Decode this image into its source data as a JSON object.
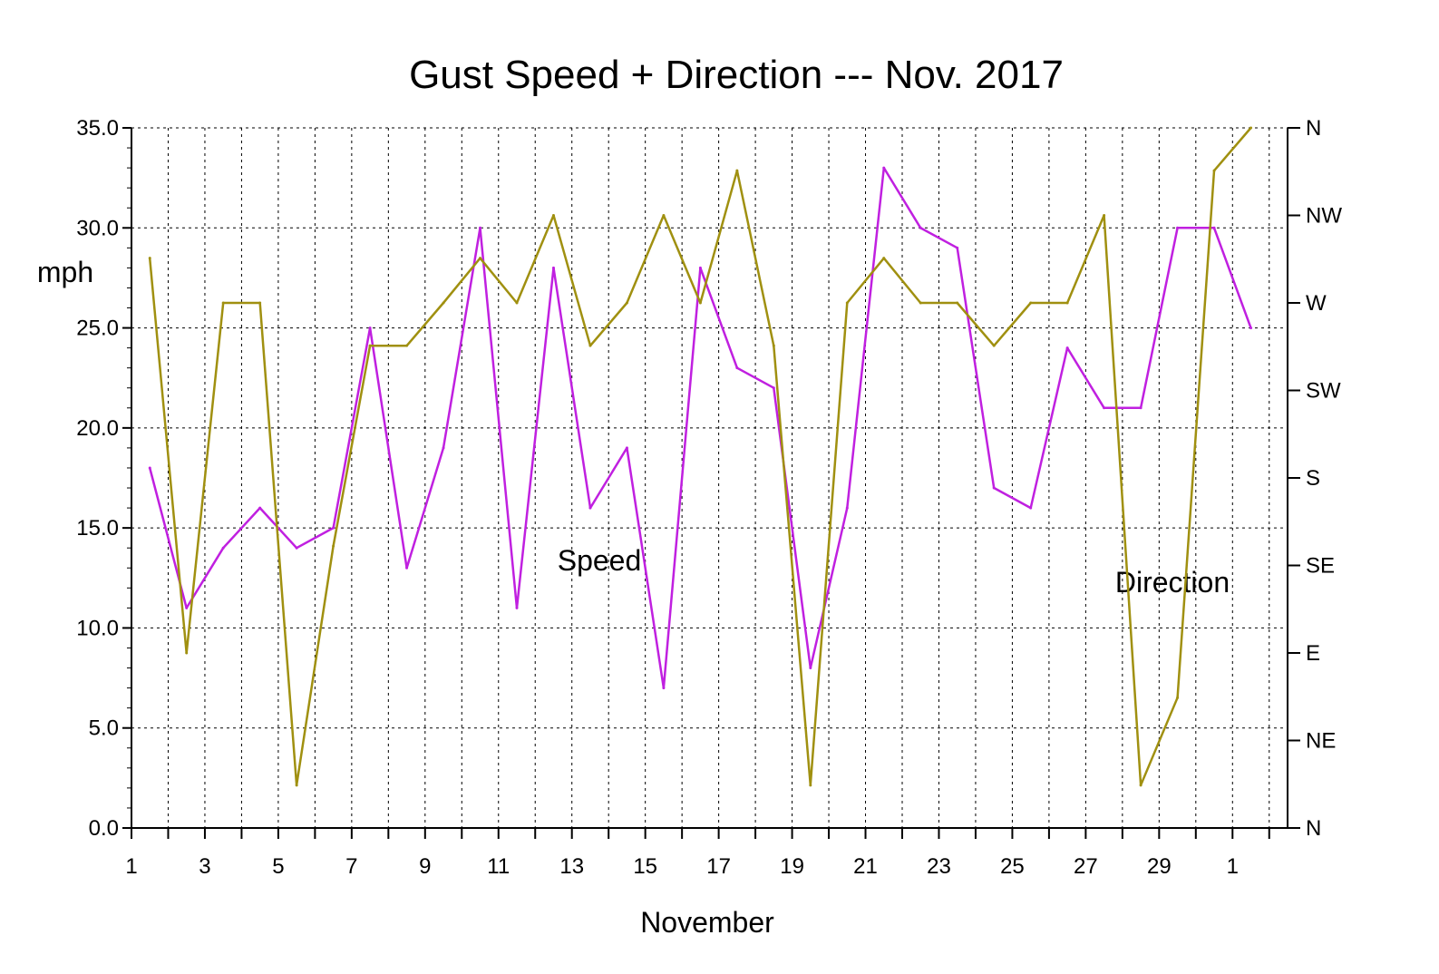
{
  "chart_data": {
    "type": "line",
    "title": "Gust Speed + Direction --- Nov. 2017",
    "xlabel": "November",
    "ylabel": "mph",
    "grid": true,
    "x_ticks": [
      "1",
      "3",
      "5",
      "7",
      "9",
      "11",
      "13",
      "15",
      "17",
      "19",
      "21",
      "23",
      "25",
      "27",
      "29",
      "1"
    ],
    "x_tick_positions": [
      1,
      3,
      5,
      7,
      9,
      11,
      13,
      15,
      17,
      19,
      21,
      23,
      25,
      27,
      29,
      31
    ],
    "xlim": [
      1,
      32.5
    ],
    "y_left": {
      "range": [
        0,
        35
      ],
      "ticks": [
        "0.0",
        "5.0",
        "10.0",
        "15.0",
        "20.0",
        "25.0",
        "30.0",
        "35.0"
      ],
      "tick_values": [
        0,
        5,
        10,
        15,
        20,
        25,
        30,
        35
      ]
    },
    "y_right": {
      "labels": [
        "N",
        "NE",
        "E",
        "SE",
        "S",
        "SW",
        "W",
        "NW",
        "N"
      ],
      "range_degrees": [
        0,
        360
      ]
    },
    "annotations": [
      "Speed",
      "Direction"
    ],
    "series": [
      {
        "name": "Speed",
        "axis": "left",
        "color": "#c020e0",
        "x": [
          1.5,
          2.5,
          3.5,
          4.5,
          5.5,
          6.5,
          7.5,
          8.5,
          9.5,
          10.5,
          11.5,
          12.5,
          13.5,
          14.5,
          15.5,
          16.5,
          17.5,
          18.5,
          19.5,
          20.5,
          21.5,
          22.5,
          23.5,
          24.5,
          25.5,
          26.5,
          27.5,
          28.5,
          29.5,
          30.5,
          31.5
        ],
        "values": [
          18,
          11,
          14,
          16,
          14,
          15,
          25,
          13,
          19,
          30,
          11,
          28,
          16,
          19,
          7,
          28,
          23,
          22,
          8,
          16,
          33,
          30,
          29,
          17,
          16,
          24,
          21,
          21,
          30,
          30,
          25
        ]
      },
      {
        "name": "Direction",
        "axis": "right",
        "color": "#a09010",
        "x": [
          1.5,
          2.5,
          3.5,
          4.5,
          5.5,
          6.5,
          7.5,
          8.5,
          9.5,
          10.5,
          11.5,
          12.5,
          13.5,
          14.5,
          15.5,
          16.5,
          17.5,
          18.5,
          19.5,
          20.5,
          21.5,
          22.5,
          23.5,
          24.5,
          25.5,
          26.5,
          27.5,
          28.5,
          29.5,
          30.5,
          31.5
        ],
        "values": [
          293,
          90,
          270,
          270,
          22,
          145,
          248,
          248,
          270,
          293,
          270,
          315,
          248,
          270,
          315,
          270,
          338,
          248,
          22,
          270,
          293,
          270,
          270,
          248,
          270,
          270,
          315,
          22,
          67,
          338,
          360
        ]
      }
    ]
  }
}
